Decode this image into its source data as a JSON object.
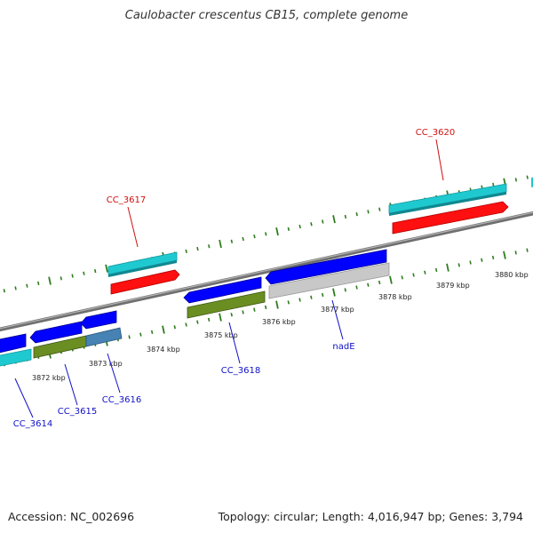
{
  "title": "Caulobacter crescentus CB15, complete genome",
  "footer": {
    "accession": "Accession: NC_002696",
    "topology": "Topology: circular; Length: 4,016,947 bp; Genes: 3,794"
  },
  "colors": {
    "backbone": "#8a8a8a",
    "tick": "#2e7d1e",
    "forward_label": "#d01010",
    "reverse_label": "#1010c8",
    "cds": "#0000ff",
    "cds_dim": "#c8c8c8",
    "gene": "#1fc9d0",
    "rrna": "#ff0000",
    "trna": "#6b8e23",
    "misc": "#4682b4"
  },
  "ticks": {
    "labels": [
      "3872 kbp",
      "3873 kbp",
      "3874 kbp",
      "3875 kbp",
      "3876 kbp",
      "3877 kbp",
      "3878 kbp",
      "3879 kbp",
      "3880 kbp"
    ]
  },
  "features": {
    "forward": [
      {
        "name": "CC_3617",
        "labeled": true
      },
      {
        "name": "CC_3620",
        "labeled": true
      }
    ],
    "reverse": [
      {
        "name": "CC_3614",
        "labeled": true
      },
      {
        "name": "CC_3615",
        "labeled": true
      },
      {
        "name": "CC_3616",
        "labeled": true
      },
      {
        "name": "CC_3618",
        "labeled": true
      },
      {
        "name": "nadE",
        "labeled": true
      }
    ]
  }
}
